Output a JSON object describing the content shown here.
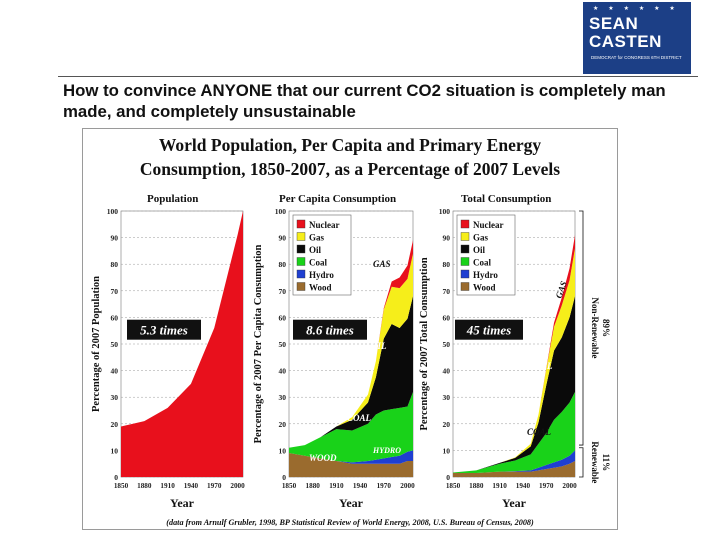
{
  "logo": {
    "line1": "SEAN",
    "line2": "CASTEN",
    "tagline": "DEMOCRAT for CONGRESS 6TH DISTRICT",
    "stars": "★ ★ ★ ★ ★ ★",
    "color": "#1c3f86"
  },
  "headline": "How to convince ANYONE that our current CO2 situation is completely man made, and completely unsustainable",
  "figure": {
    "title_line1": "World Population, Per Capita and Primary Energy",
    "title_line2": "Consumption, 1850-2007, as a Percentage of 2007 Levels",
    "source_note": "(data from Arnulf Grubler, 1998, BP Statistical Review of World Energy, 2008, U.S. Bureau of Census, 2008)"
  },
  "chart_data": [
    {
      "type": "area",
      "title": "Population",
      "xlabel": "Year",
      "ylabel": "Percentage of 2007 Population",
      "x": [
        1850,
        1880,
        1910,
        1940,
        1970,
        2000,
        2007
      ],
      "ylim": [
        0,
        100
      ],
      "yticks": [
        0,
        10,
        20,
        30,
        40,
        50,
        60,
        70,
        80,
        90,
        100
      ],
      "xticks": [
        "1850",
        "1880",
        "1910",
        "1940",
        "1970",
        "2000"
      ],
      "series": [
        {
          "name": "Population",
          "color": "#e8101c",
          "values": [
            19,
            21,
            26,
            35,
            56,
            91,
            100
          ]
        }
      ],
      "annotations": [
        "5.3 times"
      ]
    },
    {
      "type": "area",
      "title": "Per Capita Consumption",
      "xlabel": "Year",
      "ylabel": "Percentage of 2007 Per Capita Consumption",
      "x": [
        1850,
        1870,
        1890,
        1910,
        1930,
        1950,
        1960,
        1970,
        1980,
        1990,
        2000,
        2007
      ],
      "ylim": [
        0,
        100
      ],
      "yticks": [
        0,
        10,
        20,
        30,
        40,
        50,
        60,
        70,
        80,
        90,
        100
      ],
      "xticks": [
        "1850",
        "1880",
        "1910",
        "1940",
        "1970",
        "2000"
      ],
      "legend": [
        "Nuclear",
        "Gas",
        "Oil",
        "Coal",
        "Hydro",
        "Wood"
      ],
      "series": [
        {
          "name": "Wood",
          "color": "#9a6b2e",
          "values": [
            9,
            8,
            7,
            6,
            5,
            5,
            5,
            5,
            5,
            5,
            6,
            6
          ]
        },
        {
          "name": "Hydro",
          "color": "#1f3fd1",
          "values": [
            0,
            0,
            0,
            0,
            0.5,
            1,
            1.5,
            2,
            2.5,
            3,
            3.5,
            4
          ]
        },
        {
          "name": "Coal",
          "color": "#19d219",
          "values": [
            2,
            4,
            8,
            12,
            12,
            14,
            17,
            18,
            18,
            18,
            17,
            22
          ]
        },
        {
          "name": "Oil",
          "color": "#0a0a0a",
          "values": [
            0,
            0,
            0,
            1,
            4,
            8,
            14,
            27,
            32,
            30,
            33,
            36
          ]
        },
        {
          "name": "Gas",
          "color": "#f6ee1a",
          "values": [
            0,
            0,
            0,
            0,
            1,
            3,
            6,
            11,
            14,
            15,
            15,
            16
          ]
        },
        {
          "name": "Nuclear",
          "color": "#e8101c",
          "values": [
            0,
            0,
            0,
            0,
            0,
            0,
            0,
            0.5,
            2,
            4,
            5,
            5
          ]
        }
      ],
      "annotations": [
        "8.6 times",
        "GAS",
        "OIL",
        "COAL",
        "WOOD",
        "HYDRO"
      ]
    },
    {
      "type": "area",
      "title": "Total Consumption",
      "xlabel": "Year",
      "ylabel": "Percentage of 2007 Total Consumption",
      "x": [
        1850,
        1880,
        1910,
        1930,
        1950,
        1960,
        1970,
        1980,
        1990,
        2000,
        2007
      ],
      "ylim": [
        0,
        100
      ],
      "yticks": [
        0,
        10,
        20,
        30,
        40,
        50,
        60,
        70,
        80,
        90,
        100
      ],
      "xticks": [
        "1850",
        "1880",
        "1910",
        "1940",
        "1970",
        "2000"
      ],
      "legend": [
        "Nuclear",
        "Gas",
        "Oil",
        "Coal",
        "Hydro",
        "Wood"
      ],
      "series": [
        {
          "name": "Wood",
          "color": "#9a6b2e",
          "values": [
            1.5,
            1.5,
            2,
            2,
            2,
            2.5,
            3,
            3.5,
            4,
            5,
            6
          ]
        },
        {
          "name": "Hydro",
          "color": "#1f3fd1",
          "values": [
            0,
            0,
            0,
            0.2,
            0.5,
            1,
            1.5,
            2,
            2.5,
            3,
            4
          ]
        },
        {
          "name": "Coal",
          "color": "#19d219",
          "values": [
            0.2,
            1,
            3,
            4,
            6,
            9,
            12,
            16,
            18,
            20,
            22
          ]
        },
        {
          "name": "Oil",
          "color": "#0a0a0a",
          "values": [
            0,
            0,
            0.3,
            1,
            3,
            8,
            18,
            26,
            28,
            32,
            36
          ]
        },
        {
          "name": "Gas",
          "color": "#f6ee1a",
          "values": [
            0,
            0,
            0,
            0.2,
            1,
            3,
            6,
            9,
            12,
            14,
            18
          ]
        },
        {
          "name": "Nuclear",
          "color": "#e8101c",
          "values": [
            0,
            0,
            0,
            0,
            0,
            0,
            0.3,
            1.5,
            3,
            4.5,
            5
          ]
        }
      ],
      "annotations": [
        "45 times",
        "GAS",
        "OIL",
        "COAL"
      ],
      "brackets": [
        {
          "label": "Non-Renewable",
          "value": "89%"
        },
        {
          "label": "Renewable",
          "value": "11%"
        }
      ]
    }
  ]
}
